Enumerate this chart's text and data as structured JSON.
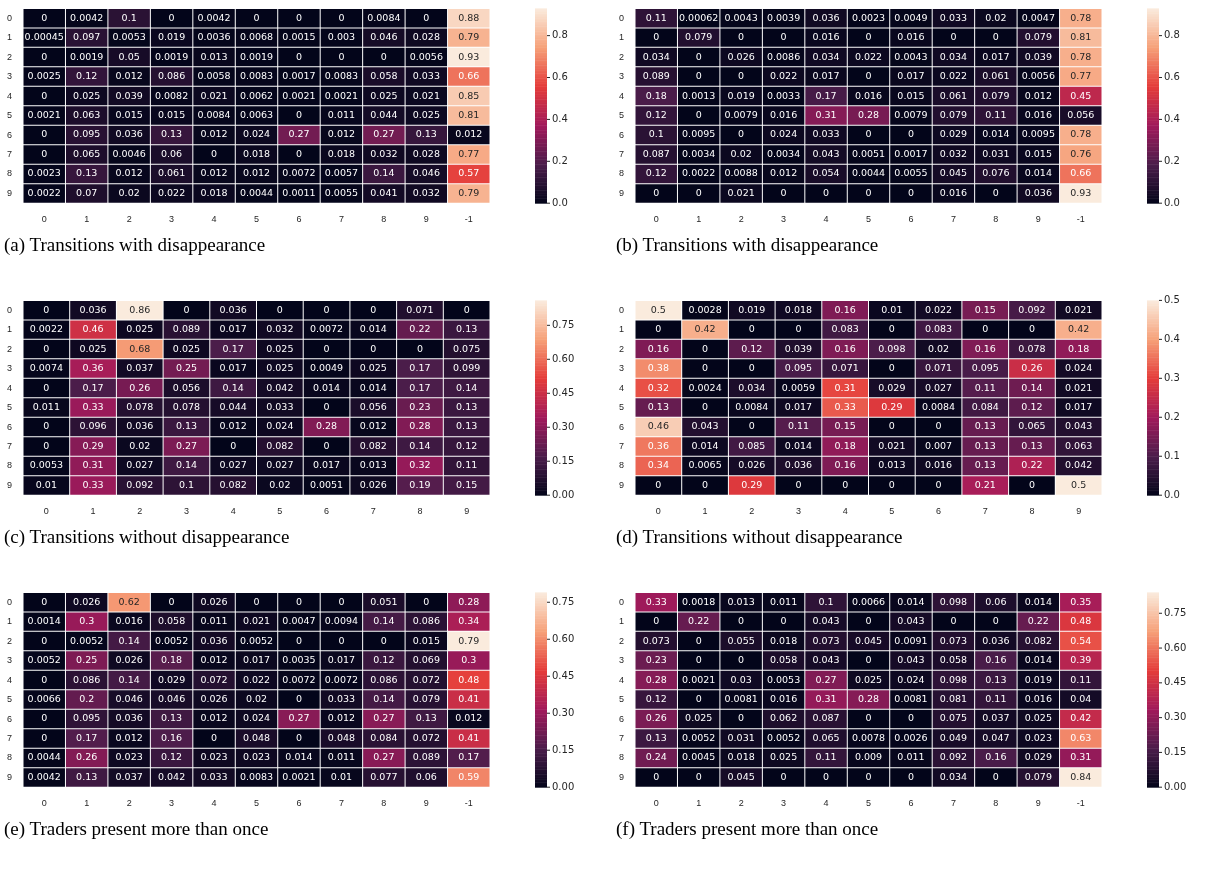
{
  "chart_data": [
    {
      "type": "heatmap",
      "title": "(a) Transitions with disappearance",
      "categories": [
        "0",
        "1",
        "2",
        "3",
        "4",
        "5",
        "6",
        "7",
        "8",
        "9",
        "-1"
      ],
      "y_categories": [
        "0",
        "1",
        "2",
        "3",
        "4",
        "5",
        "6",
        "7",
        "8",
        "9"
      ],
      "clim": [
        0,
        0.93
      ],
      "cticks": [
        {
          "value": 0,
          "label": "0.0"
        },
        0.2,
        0.4,
        0.6,
        0.8
      ],
      "data_labels": true,
      "cells": [
        [
          0,
          0.0042,
          0.1,
          0,
          0.0042,
          0,
          0,
          0,
          0.0084,
          0,
          0.88
        ],
        [
          0.00045,
          0.097,
          0.0053,
          0.019,
          0.0036,
          0.0068,
          0.0015,
          0.003,
          0.046,
          0.028,
          0.79
        ],
        [
          0,
          0.0019,
          0.05,
          0.0019,
          0.013,
          0.0019,
          0,
          0,
          0,
          0.0056,
          0.93
        ],
        [
          0.0025,
          0.12,
          0.012,
          0.086,
          0.0058,
          0.0083,
          0.0017,
          0.0083,
          0.058,
          0.033,
          0.66
        ],
        [
          0,
          0.025,
          0.039,
          0.0082,
          0.021,
          0.0062,
          0.0021,
          0.0021,
          0.025,
          0.021,
          0.85
        ],
        [
          0.0021,
          0.063,
          0.015,
          0.015,
          0.0084,
          0.0063,
          0,
          0.011,
          0.044,
          0.025,
          0.81
        ],
        [
          0,
          0.095,
          0.036,
          0.13,
          0.012,
          0.024,
          0.27,
          0.012,
          0.27,
          0.13,
          0.012
        ],
        [
          0,
          0.065,
          0.0046,
          0.06,
          0,
          0.018,
          0,
          0.018,
          0.032,
          0.028,
          0.77
        ],
        [
          0.0023,
          0.13,
          0.012,
          0.061,
          0.012,
          0.012,
          0.0072,
          0.0057,
          0.14,
          0.046,
          0.57
        ],
        [
          0.0022,
          0.07,
          0.02,
          0.022,
          0.018,
          0.0044,
          0.0011,
          0.0055,
          0.041,
          0.032,
          0.79
        ]
      ]
    },
    {
      "type": "heatmap",
      "title": "(b) Transitions with disappearance",
      "categories": [
        "0",
        "1",
        "2",
        "3",
        "4",
        "5",
        "6",
        "7",
        "8",
        "9",
        "-1"
      ],
      "y_categories": [
        "0",
        "1",
        "2",
        "3",
        "4",
        "5",
        "6",
        "7",
        "8",
        "9"
      ],
      "clim": [
        0,
        0.93
      ],
      "cticks": [
        {
          "value": 0,
          "label": "0.0"
        },
        0.2,
        0.4,
        0.6,
        0.8
      ],
      "data_labels": true,
      "cells": [
        [
          0.11,
          0.00062,
          0.0043,
          0.0039,
          0.036,
          0.0023,
          0.0049,
          0.033,
          0.02,
          0.0047,
          0.78
        ],
        [
          0,
          0.079,
          0,
          0,
          0.016,
          0,
          0.016,
          0,
          0,
          0.079,
          0.81
        ],
        [
          0.034,
          0,
          0.026,
          0.0086,
          0.034,
          0.022,
          0.0043,
          0.034,
          0.017,
          0.039,
          0.78
        ],
        [
          0.089,
          0,
          0,
          0.022,
          0.017,
          0,
          0.017,
          0.022,
          0.061,
          0.0056,
          0.77
        ],
        [
          0.18,
          0.0013,
          0.019,
          0.0033,
          0.17,
          0.016,
          0.015,
          0.061,
          0.079,
          0.012,
          0.45
        ],
        [
          0.12,
          0,
          0.0079,
          0.016,
          0.31,
          0.28,
          0.0079,
          0.079,
          0.11,
          0.016,
          0.056
        ],
        [
          0.1,
          0.0095,
          0,
          0.024,
          0.033,
          0,
          0,
          0.029,
          0.014,
          0.0095,
          0.78
        ],
        [
          0.087,
          0.0034,
          0.02,
          0.0034,
          0.043,
          0.0051,
          0.0017,
          0.032,
          0.031,
          0.015,
          0.76
        ],
        [
          0.12,
          0.0022,
          0.0088,
          0.012,
          0.054,
          0.0044,
          0.0055,
          0.045,
          0.076,
          0.014,
          0.66
        ],
        [
          0,
          0,
          0.021,
          0,
          0,
          0,
          0,
          0.016,
          0,
          0.036,
          0.93
        ]
      ]
    },
    {
      "type": "heatmap",
      "title": "(c) Transitions without disappearance",
      "categories": [
        "0",
        "1",
        "2",
        "3",
        "4",
        "5",
        "6",
        "7",
        "8",
        "9"
      ],
      "y_categories": [
        "0",
        "1",
        "2",
        "3",
        "4",
        "5",
        "6",
        "7",
        "8",
        "9"
      ],
      "clim": [
        0,
        0.86
      ],
      "cticks": [
        {
          "value": 0,
          "label": "0.00"
        },
        {
          "value": 0.15,
          "label": "0.15"
        },
        {
          "value": 0.3,
          "label": "0.30"
        },
        {
          "value": 0.45,
          "label": "0.45"
        },
        {
          "value": 0.6,
          "label": "0.60"
        },
        0.75
      ],
      "data_labels": true,
      "cells": [
        [
          0,
          0.036,
          0.86,
          0,
          0.036,
          0,
          0,
          0,
          0.071,
          0
        ],
        [
          0.0022,
          0.46,
          0.025,
          0.089,
          0.017,
          0.032,
          0.0072,
          0.014,
          0.22,
          0.13
        ],
        [
          0,
          0.025,
          0.68,
          0.025,
          0.17,
          0.025,
          0,
          0,
          0,
          0.075
        ],
        [
          0.0074,
          0.36,
          0.037,
          0.25,
          0.017,
          0.025,
          0.0049,
          0.025,
          0.17,
          0.099
        ],
        [
          0,
          0.17,
          0.26,
          0.056,
          0.14,
          0.042,
          0.014,
          0.014,
          0.17,
          0.14
        ],
        [
          0.011,
          0.33,
          0.078,
          0.078,
          0.044,
          0.033,
          0,
          0.056,
          0.23,
          0.13
        ],
        [
          0,
          0.096,
          0.036,
          0.13,
          0.012,
          0.024,
          0.28,
          0.012,
          0.28,
          0.13
        ],
        [
          0,
          0.29,
          0.02,
          0.27,
          0,
          0.082,
          0,
          0.082,
          0.14,
          0.12
        ],
        [
          0.0053,
          0.31,
          0.027,
          0.14,
          0.027,
          0.027,
          0.017,
          0.013,
          0.32,
          0.11
        ],
        [
          0.01,
          0.33,
          0.092,
          0.1,
          0.082,
          0.02,
          0.0051,
          0.026,
          0.19,
          0.15
        ]
      ]
    },
    {
      "type": "heatmap",
      "title": "(d) Transitions without disappearance",
      "categories": [
        "0",
        "1",
        "2",
        "3",
        "4",
        "5",
        "6",
        "7",
        "8",
        "9"
      ],
      "y_categories": [
        "0",
        "1",
        "2",
        "3",
        "4",
        "5",
        "6",
        "7",
        "8",
        "9"
      ],
      "clim": [
        0,
        0.5
      ],
      "cticks": [
        {
          "value": 0,
          "label": "0.0"
        },
        0.1,
        0.2,
        0.3,
        0.4,
        0.5
      ],
      "data_labels": true,
      "cells": [
        [
          0.5,
          0.0028,
          0.019,
          0.018,
          0.16,
          0.01,
          0.022,
          0.15,
          0.092,
          0.021
        ],
        [
          0,
          0.42,
          0,
          0,
          0.083,
          0,
          0.083,
          0,
          0,
          0.42
        ],
        [
          0.16,
          0,
          0.12,
          0.039,
          0.16,
          0.098,
          0.02,
          0.16,
          0.078,
          0.18
        ],
        [
          0.38,
          0,
          0,
          0.095,
          0.071,
          0,
          0.071,
          0.095,
          0.26,
          0.024
        ],
        [
          0.32,
          0.0024,
          0.034,
          0.0059,
          0.31,
          0.029,
          0.027,
          0.11,
          0.14,
          0.021
        ],
        [
          0.13,
          0,
          0.0084,
          0.017,
          0.33,
          0.29,
          0.0084,
          0.084,
          0.12,
          0.017
        ],
        [
          0.46,
          0.043,
          0,
          0.11,
          0.15,
          0,
          0,
          0.13,
          0.065,
          0.043
        ],
        [
          0.36,
          0.014,
          0.085,
          0.014,
          0.18,
          0.021,
          0.007,
          0.13,
          0.13,
          0.063
        ],
        [
          0.34,
          0.0065,
          0.026,
          0.036,
          0.16,
          0.013,
          0.016,
          0.13,
          0.22,
          0.042
        ],
        [
          0,
          0,
          0.29,
          0,
          0,
          0,
          0,
          0.21,
          0,
          0.5
        ]
      ]
    },
    {
      "type": "heatmap",
      "title": "(e) Traders present more than once",
      "categories": [
        "0",
        "1",
        "2",
        "3",
        "4",
        "5",
        "6",
        "7",
        "8",
        "9",
        "-1"
      ],
      "y_categories": [
        "0",
        "1",
        "2",
        "3",
        "4",
        "5",
        "6",
        "7",
        "8",
        "9"
      ],
      "clim": [
        0,
        0.79
      ],
      "cticks": [
        {
          "value": 0,
          "label": "0.00"
        },
        {
          "value": 0.15,
          "label": "0.15"
        },
        {
          "value": 0.3,
          "label": "0.30"
        },
        {
          "value": 0.45,
          "label": "0.45"
        },
        {
          "value": 0.6,
          "label": "0.60"
        },
        0.75
      ],
      "data_labels": true,
      "cells": [
        [
          0,
          0.026,
          0.62,
          0,
          0.026,
          0,
          0,
          0,
          0.051,
          0,
          0.28
        ],
        [
          0.0014,
          0.3,
          0.016,
          0.058,
          0.011,
          0.021,
          0.0047,
          0.0094,
          0.14,
          0.086,
          0.34
        ],
        [
          0,
          0.0052,
          0.14,
          0.0052,
          0.036,
          0.0052,
          0,
          0,
          0,
          0.015,
          0.79
        ],
        [
          0.0052,
          0.25,
          0.026,
          0.18,
          0.012,
          0.017,
          0.0035,
          0.017,
          0.12,
          0.069,
          0.3
        ],
        [
          0,
          0.086,
          0.14,
          0.029,
          0.072,
          0.022,
          0.0072,
          0.0072,
          0.086,
          0.072,
          0.48
        ],
        [
          0.0066,
          0.2,
          0.046,
          0.046,
          0.026,
          0.02,
          0,
          0.033,
          0.14,
          0.079,
          0.41
        ],
        [
          0,
          0.095,
          0.036,
          0.13,
          0.012,
          0.024,
          0.27,
          0.012,
          0.27,
          0.13,
          0.012
        ],
        [
          0,
          0.17,
          0.012,
          0.16,
          0,
          0.048,
          0,
          0.048,
          0.084,
          0.072,
          0.41
        ],
        [
          0.0044,
          0.26,
          0.023,
          0.12,
          0.023,
          0.023,
          0.014,
          0.011,
          0.27,
          0.089,
          0.17
        ],
        [
          0.0042,
          0.13,
          0.037,
          0.042,
          0.033,
          0.0083,
          0.0021,
          0.01,
          0.077,
          0.06,
          0.59
        ]
      ]
    },
    {
      "type": "heatmap",
      "title": "(f) Traders present more than once",
      "categories": [
        "0",
        "1",
        "2",
        "3",
        "4",
        "5",
        "6",
        "7",
        "8",
        "9",
        "-1"
      ],
      "y_categories": [
        "0",
        "1",
        "2",
        "3",
        "4",
        "5",
        "6",
        "7",
        "8",
        "9"
      ],
      "clim": [
        0,
        0.84
      ],
      "cticks": [
        {
          "value": 0,
          "label": "0.00"
        },
        {
          "value": 0.15,
          "label": "0.15"
        },
        {
          "value": 0.3,
          "label": "0.30"
        },
        {
          "value": 0.45,
          "label": "0.45"
        },
        {
          "value": 0.6,
          "label": "0.60"
        },
        0.75
      ],
      "data_labels": true,
      "cells": [
        [
          0.33,
          0.0018,
          0.013,
          0.011,
          0.1,
          0.0066,
          0.014,
          0.098,
          0.06,
          0.014,
          0.35
        ],
        [
          0,
          0.22,
          0,
          0,
          0.043,
          0,
          0.043,
          0,
          0,
          0.22,
          0.48
        ],
        [
          0.073,
          0,
          0.055,
          0.018,
          0.073,
          0.045,
          0.0091,
          0.073,
          0.036,
          0.082,
          0.54
        ],
        [
          0.23,
          0,
          0,
          0.058,
          0.043,
          0,
          0.043,
          0.058,
          0.16,
          0.014,
          0.39
        ],
        [
          0.28,
          0.0021,
          0.03,
          0.0053,
          0.27,
          0.025,
          0.024,
          0.098,
          0.13,
          0.019,
          0.11
        ],
        [
          0.12,
          0,
          0.0081,
          0.016,
          0.31,
          0.28,
          0.0081,
          0.081,
          0.11,
          0.016,
          0.04
        ],
        [
          0.26,
          0.025,
          0,
          0.062,
          0.087,
          0,
          0,
          0.075,
          0.037,
          0.025,
          0.42
        ],
        [
          0.13,
          0.0052,
          0.031,
          0.0052,
          0.065,
          0.0078,
          0.0026,
          0.049,
          0.047,
          0.023,
          0.63
        ],
        [
          0.24,
          0.0045,
          0.018,
          0.025,
          0.11,
          0.009,
          0.011,
          0.092,
          0.16,
          0.029,
          0.31
        ],
        [
          0,
          0,
          0.045,
          0,
          0,
          0,
          0,
          0.034,
          0,
          0.079,
          0.84
        ]
      ]
    }
  ]
}
